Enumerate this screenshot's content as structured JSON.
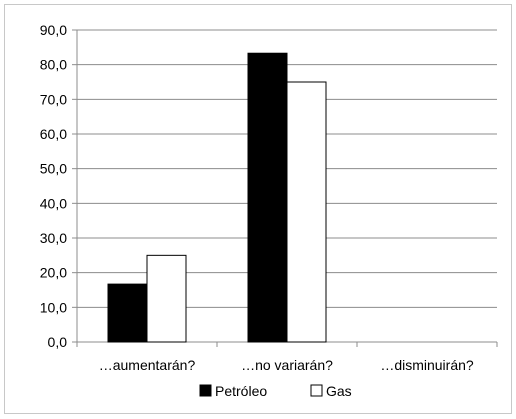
{
  "chart_data": {
    "type": "bar",
    "categories": [
      "…aumentarán?",
      "…no variarán?",
      "…disminuirán?"
    ],
    "series": [
      {
        "name": "Petróleo",
        "values": [
          16.7,
          83.3,
          0
        ],
        "color": "#000000"
      },
      {
        "name": "Gas",
        "values": [
          25.0,
          75.0,
          0
        ],
        "color": "#ffffff"
      }
    ],
    "ylim": [
      0,
      90
    ],
    "yticks": [
      0,
      10,
      20,
      30,
      40,
      50,
      60,
      70,
      80,
      90
    ],
    "ytick_labels": [
      "0,0",
      "10,0",
      "20,0",
      "30,0",
      "40,0",
      "50,0",
      "60,0",
      "70,0",
      "80,0",
      "90,0"
    ],
    "grid": true,
    "legend": "bottom",
    "title": "",
    "xlabel": "",
    "ylabel": ""
  }
}
